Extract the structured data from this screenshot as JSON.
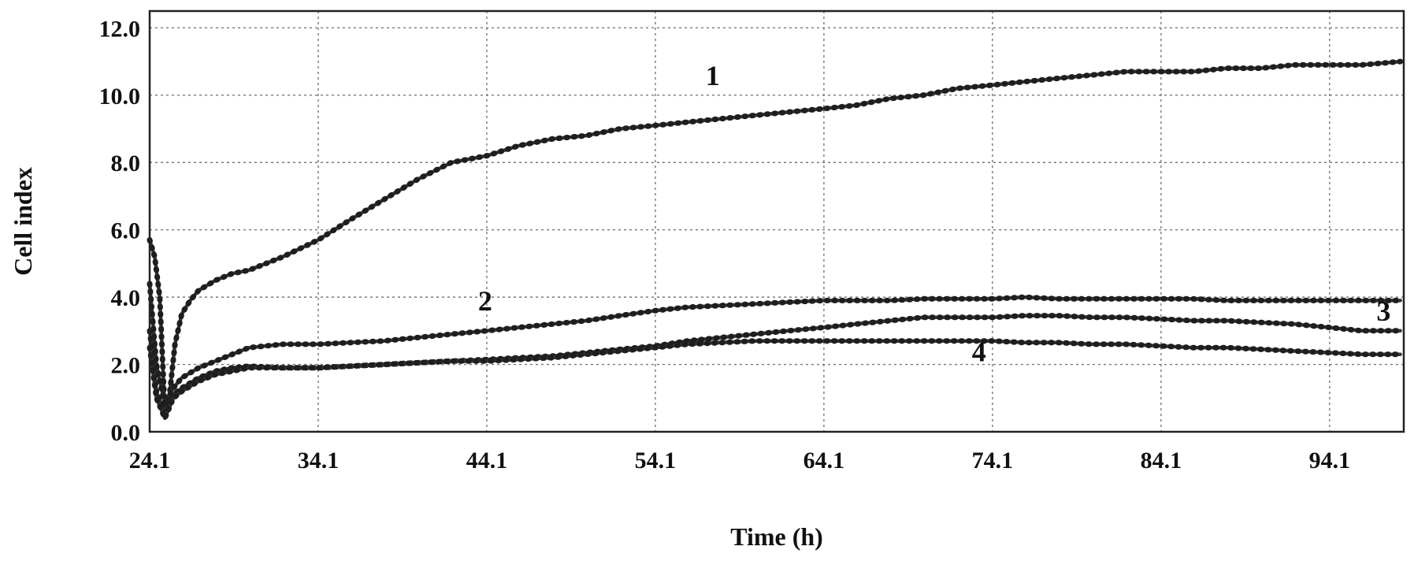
{
  "chart_data": {
    "type": "line",
    "xlabel": "Time (h)",
    "ylabel": "Cell index",
    "xlim": [
      24.1,
      98.5
    ],
    "ylim": [
      0,
      12.5
    ],
    "x_ticks": [
      "24.1",
      "34.1",
      "44.1",
      "54.1",
      "64.1",
      "74.1",
      "84.1",
      "94.1"
    ],
    "y_ticks": [
      "0.0",
      "2.0",
      "4.0",
      "6.0",
      "8.0",
      "10.0",
      "12.0"
    ],
    "grid": true,
    "series": [
      {
        "name": "1",
        "label_at": [
          57.5,
          10.3
        ],
        "x": [
          24.1,
          24.4,
          24.7,
          25.0,
          25.3,
          25.6,
          26.0,
          26.5,
          27.0,
          28.0,
          29.0,
          30.0,
          32.0,
          34.1,
          36.0,
          38.0,
          40.0,
          42.0,
          44.1,
          46.0,
          48.0,
          50.0,
          52.0,
          54.1,
          56.0,
          58.0,
          60.0,
          62.0,
          64.1,
          66.0,
          68.0,
          70.0,
          72.0,
          74.1,
          76.0,
          78.0,
          80.0,
          82.0,
          84.1,
          86.0,
          88.0,
          90.0,
          92.0,
          94.1,
          96.0,
          98.3
        ],
        "y": [
          5.7,
          5.2,
          4.0,
          0.6,
          1.2,
          2.6,
          3.5,
          3.9,
          4.2,
          4.5,
          4.7,
          4.8,
          5.2,
          5.7,
          6.3,
          6.9,
          7.5,
          8.0,
          8.2,
          8.5,
          8.7,
          8.8,
          9.0,
          9.1,
          9.2,
          9.3,
          9.4,
          9.5,
          9.6,
          9.7,
          9.9,
          10.0,
          10.2,
          10.3,
          10.4,
          10.5,
          10.6,
          10.7,
          10.7,
          10.7,
          10.8,
          10.8,
          10.9,
          10.9,
          10.9,
          11.0
        ]
      },
      {
        "name": "2",
        "label_at": [
          44.0,
          3.6
        ],
        "x": [
          24.1,
          24.5,
          25.0,
          25.5,
          26.0,
          27.0,
          28.0,
          29.0,
          30.0,
          32.0,
          34.1,
          36.0,
          38.0,
          40.0,
          42.0,
          44.1,
          46.0,
          48.0,
          50.0,
          52.0,
          54.1,
          56.0,
          58.0,
          60.0,
          62.0,
          64.1,
          66.0,
          68.0,
          70.0,
          72.0,
          74.1,
          76.0,
          78.0,
          80.0,
          82.0,
          84.1,
          86.0,
          88.0,
          90.0,
          92.0,
          94.1,
          96.0,
          98.3
        ],
        "y": [
          4.4,
          2.0,
          0.8,
          1.3,
          1.6,
          1.9,
          2.1,
          2.3,
          2.5,
          2.6,
          2.6,
          2.65,
          2.7,
          2.8,
          2.9,
          3.0,
          3.1,
          3.2,
          3.3,
          3.45,
          3.6,
          3.7,
          3.75,
          3.8,
          3.85,
          3.9,
          3.9,
          3.9,
          3.95,
          3.95,
          3.95,
          4.0,
          3.95,
          3.95,
          3.95,
          3.95,
          3.95,
          3.9,
          3.9,
          3.9,
          3.9,
          3.9,
          3.9
        ]
      },
      {
        "name": "3",
        "label_at": [
          97.3,
          3.3
        ],
        "x": [
          24.1,
          24.5,
          25.0,
          25.5,
          26.0,
          27.0,
          28.0,
          29.0,
          30.0,
          32.0,
          34.1,
          36.0,
          38.0,
          40.0,
          42.0,
          44.1,
          46.0,
          48.0,
          50.0,
          52.0,
          54.1,
          56.0,
          58.0,
          60.0,
          62.0,
          64.1,
          66.0,
          68.0,
          70.0,
          72.0,
          74.1,
          76.0,
          78.0,
          80.0,
          82.0,
          84.1,
          86.0,
          88.0,
          90.0,
          92.0,
          94.1,
          96.0,
          98.3
        ],
        "y": [
          3.0,
          1.2,
          0.5,
          1.1,
          1.3,
          1.6,
          1.8,
          1.9,
          1.95,
          1.9,
          1.9,
          1.95,
          2.0,
          2.05,
          2.1,
          2.15,
          2.2,
          2.25,
          2.35,
          2.45,
          2.55,
          2.7,
          2.8,
          2.9,
          3.0,
          3.1,
          3.2,
          3.3,
          3.4,
          3.4,
          3.4,
          3.45,
          3.45,
          3.4,
          3.4,
          3.35,
          3.3,
          3.3,
          3.25,
          3.2,
          3.1,
          3.0,
          3.0
        ]
      },
      {
        "name": "4",
        "label_at": [
          73.3,
          2.1
        ],
        "x": [
          24.1,
          24.5,
          25.0,
          25.5,
          26.0,
          27.0,
          28.0,
          29.0,
          30.0,
          32.0,
          34.1,
          36.0,
          38.0,
          40.0,
          42.0,
          44.1,
          46.0,
          48.0,
          50.0,
          52.0,
          54.1,
          56.0,
          58.0,
          60.0,
          62.0,
          64.1,
          66.0,
          68.0,
          70.0,
          72.0,
          74.1,
          76.0,
          78.0,
          80.0,
          82.0,
          84.1,
          86.0,
          88.0,
          90.0,
          92.0,
          94.1,
          96.0,
          98.3
        ],
        "y": [
          2.5,
          1.0,
          0.4,
          1.0,
          1.2,
          1.5,
          1.7,
          1.8,
          1.9,
          1.9,
          1.9,
          1.95,
          2.0,
          2.05,
          2.1,
          2.1,
          2.15,
          2.2,
          2.3,
          2.4,
          2.5,
          2.6,
          2.65,
          2.7,
          2.7,
          2.7,
          2.7,
          2.7,
          2.7,
          2.7,
          2.7,
          2.65,
          2.65,
          2.6,
          2.6,
          2.55,
          2.5,
          2.5,
          2.45,
          2.4,
          2.35,
          2.3,
          2.3
        ]
      }
    ]
  }
}
